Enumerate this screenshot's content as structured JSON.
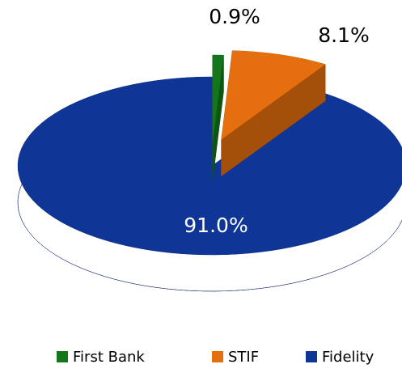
{
  "chart_data": {
    "type": "pie",
    "categories": [
      "First Bank",
      "STIF",
      "Fidelity"
    ],
    "values": [
      0.9,
      8.1,
      91.0
    ],
    "value_labels": [
      "0.9%",
      "8.1%",
      "91.0%"
    ],
    "colors": [
      "#13761b",
      "#e56f0e",
      "#0f3597"
    ],
    "legend": "bottom"
  }
}
